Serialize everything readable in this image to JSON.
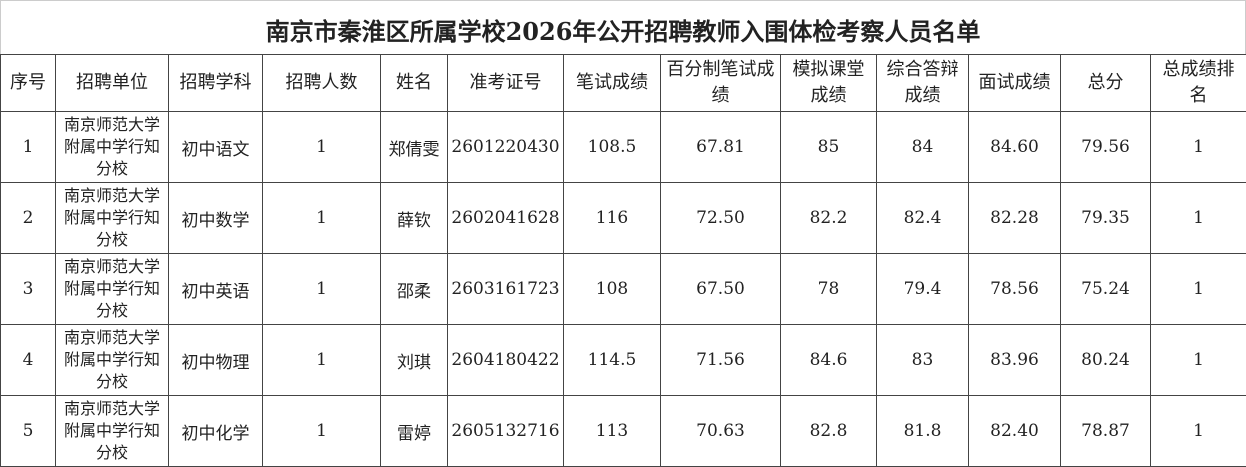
{
  "title": "南京市秦淮区所属学校2026年公开招聘教师入围体检考察人员名单",
  "headers": [
    "序号",
    "招聘单位",
    "招聘学科",
    "招聘人数",
    "姓名",
    "准考证号",
    "笔试成绩",
    "百分制笔试成绩",
    "模拟课堂成绩",
    "综合答辩成绩",
    "面试成绩",
    "总分",
    "总成绩排名"
  ],
  "rows": [
    [
      "1",
      "南京师范大学附属中学行知分校",
      "初中语文",
      "1",
      "郑倩雯",
      "2601220430",
      "108.5",
      "67.81",
      "85",
      "84",
      "84.60",
      "79.56",
      "1"
    ],
    [
      "2",
      "南京师范大学附属中学行知分校",
      "初中数学",
      "1",
      "薛钦",
      "2602041628",
      "116",
      "72.50",
      "82.2",
      "82.4",
      "82.28",
      "79.35",
      "1"
    ],
    [
      "3",
      "南京师范大学附属中学行知分校",
      "初中英语",
      "1",
      "邵柔",
      "2603161723",
      "108",
      "67.50",
      "78",
      "79.4",
      "78.56",
      "75.24",
      "1"
    ],
    [
      "4",
      "南京师范大学附属中学行知分校",
      "初中物理",
      "1",
      "刘琪",
      "2604180422",
      "114.5",
      "71.56",
      "84.6",
      "83",
      "83.96",
      "80.24",
      "1"
    ],
    [
      "5",
      "南京师范大学附属中学行知分校",
      "初中化学",
      "1",
      "雷婷",
      "2605132716",
      "113",
      "70.63",
      "82.8",
      "81.8",
      "82.40",
      "78.87",
      "1"
    ]
  ]
}
